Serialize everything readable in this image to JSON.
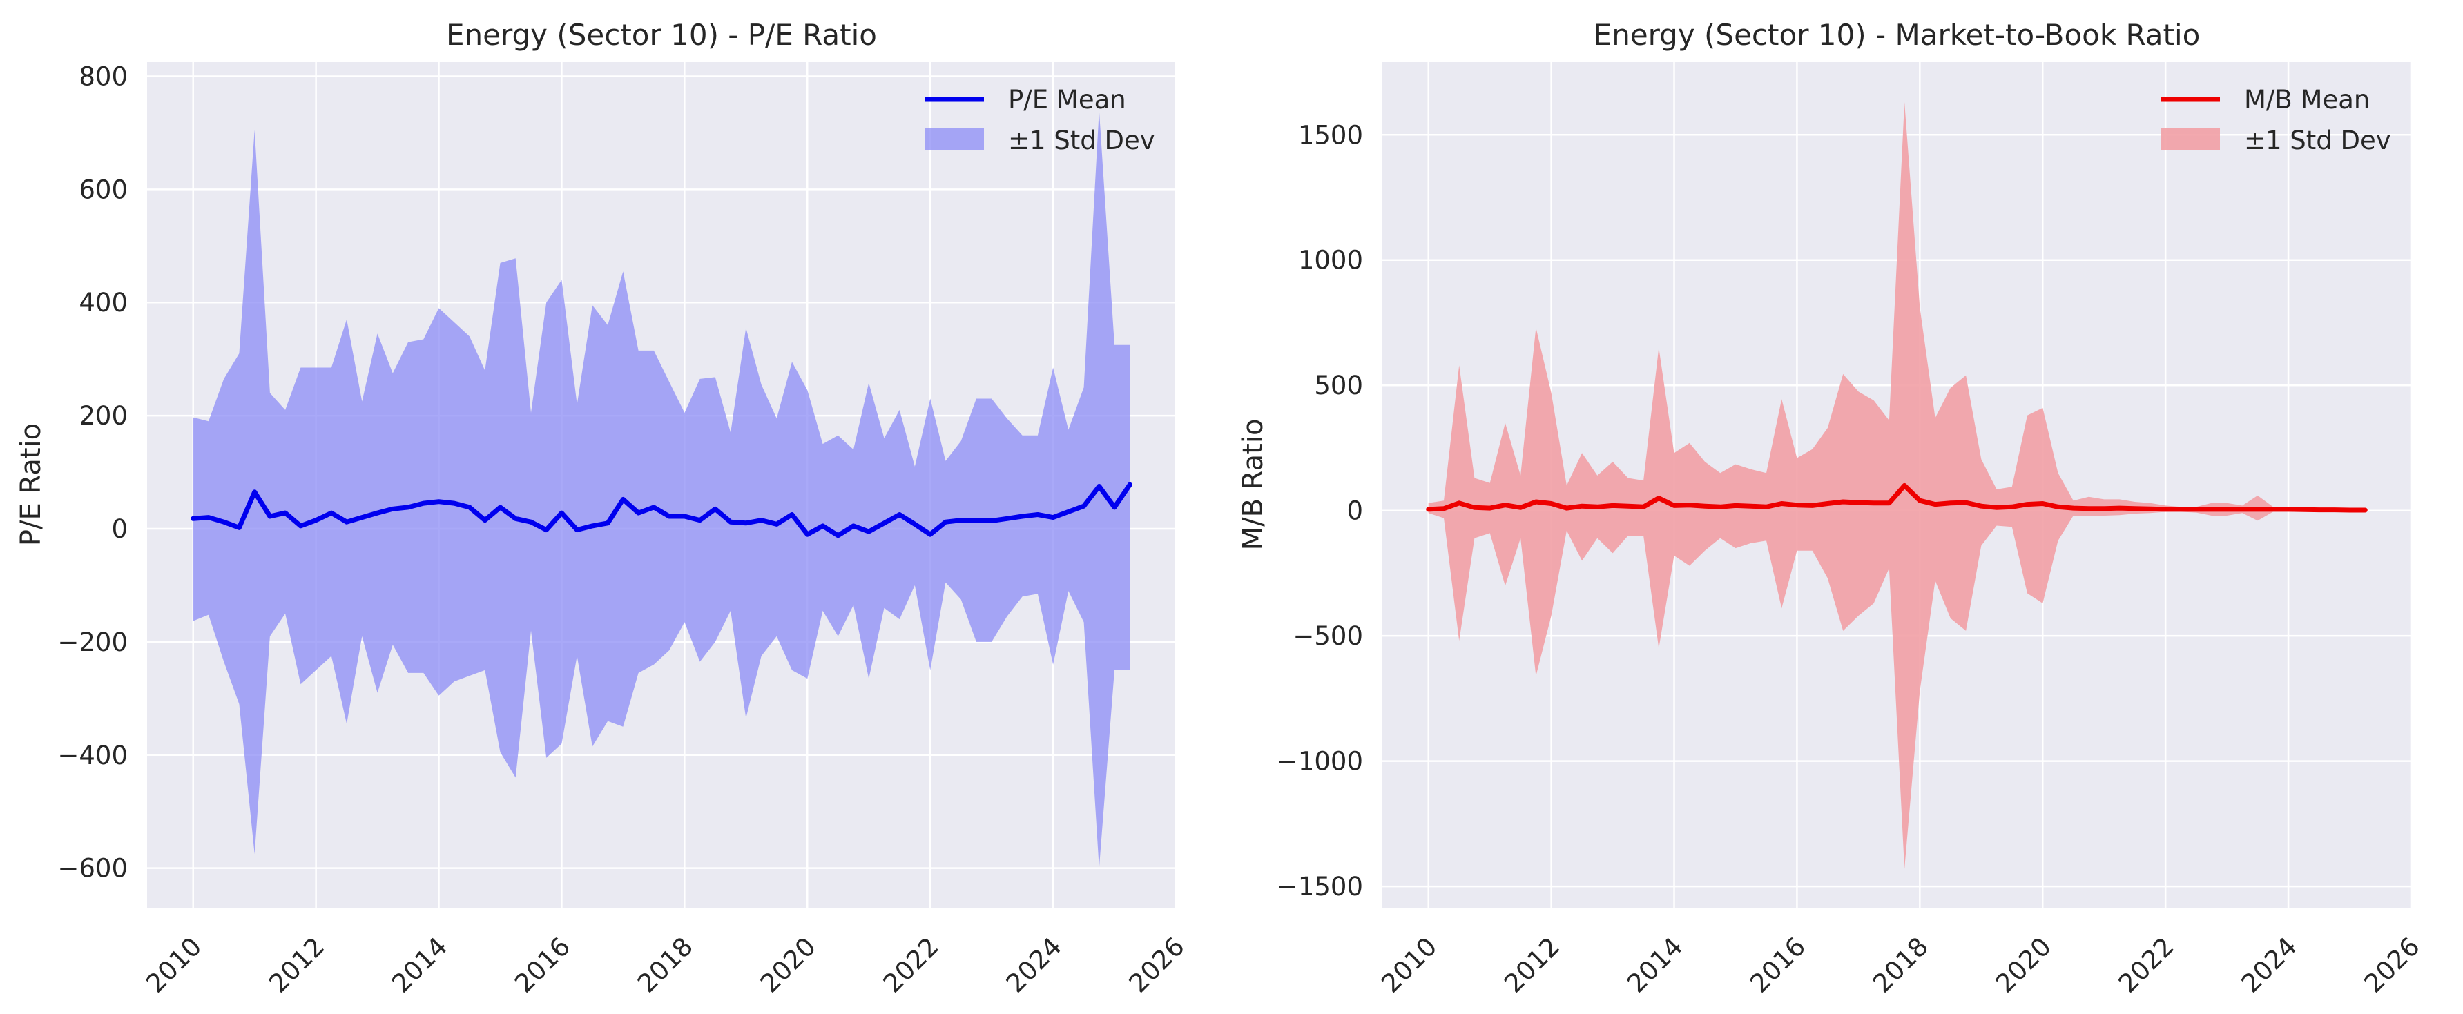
{
  "chart_data": [
    {
      "type": "line",
      "title": "Energy (Sector 10) - P/E Ratio",
      "xlabel": "",
      "ylabel": "P/E Ratio",
      "xlim": [
        2009.25,
        2026.0
      ],
      "ylim": [
        -670,
        825
      ],
      "x_ticks": [
        2010,
        2012,
        2014,
        2016,
        2018,
        2020,
        2022,
        2024,
        2026
      ],
      "x_tick_labels": [
        "2010",
        "2012",
        "2014",
        "2016",
        "2018",
        "2020",
        "2022",
        "2024",
        "2026"
      ],
      "y_ticks": [
        -600,
        -400,
        -200,
        0,
        200,
        400,
        600,
        800
      ],
      "y_tick_labels": [
        "−600",
        "−400",
        "−200",
        "0",
        "200",
        "400",
        "600",
        "800"
      ],
      "grid": true,
      "legend_position": "top-right",
      "legend": [
        "P/E Mean",
        "±1 Std Dev"
      ],
      "colors": {
        "line": "#0000ee",
        "band": "#8c8cf5"
      },
      "x": [
        2010.0,
        2010.25,
        2010.5,
        2010.75,
        2011.0,
        2011.25,
        2011.5,
        2011.75,
        2012.0,
        2012.25,
        2012.5,
        2012.75,
        2013.0,
        2013.25,
        2013.5,
        2013.75,
        2014.0,
        2014.25,
        2014.5,
        2014.75,
        2015.0,
        2015.25,
        2015.5,
        2015.75,
        2016.0,
        2016.25,
        2016.5,
        2016.75,
        2017.0,
        2017.25,
        2017.5,
        2017.75,
        2018.0,
        2018.25,
        2018.5,
        2018.75,
        2019.0,
        2019.25,
        2019.5,
        2019.75,
        2020.0,
        2020.25,
        2020.5,
        2020.75,
        2021.0,
        2021.25,
        2021.5,
        2021.75,
        2022.0,
        2022.25,
        2022.5,
        2022.75,
        2023.0,
        2023.25,
        2023.5,
        2023.75,
        2024.0,
        2024.25,
        2024.5,
        2024.75,
        2025.0,
        2025.25
      ],
      "series": [
        {
          "name": "P/E Mean",
          "values": [
            18,
            20,
            12,
            2,
            65,
            22,
            28,
            5,
            15,
            28,
            12,
            20,
            28,
            35,
            38,
            45,
            48,
            45,
            38,
            15,
            38,
            18,
            12,
            -2,
            28,
            -2,
            5,
            10,
            52,
            28,
            38,
            22,
            22,
            15,
            35,
            12,
            10,
            15,
            8,
            25,
            -10,
            5,
            -12,
            5,
            -5,
            10,
            25,
            8,
            -10,
            12,
            15,
            15,
            14,
            18,
            22,
            25,
            20,
            30,
            40,
            75,
            38,
            78
          ]
        },
        {
          "name": "±1 Std Dev",
          "lower": [
            -163,
            -152,
            -235,
            -310,
            -575,
            -190,
            -150,
            -275,
            -250,
            -225,
            -345,
            -190,
            -290,
            -205,
            -255,
            -255,
            -295,
            -270,
            -260,
            -250,
            -395,
            -440,
            -180,
            -405,
            -380,
            -225,
            -385,
            -340,
            -350,
            -255,
            -240,
            -215,
            -165,
            -235,
            -200,
            -145,
            -335,
            -225,
            -190,
            -250,
            -265,
            -145,
            -190,
            -135,
            -265,
            -140,
            -160,
            -100,
            -250,
            -95,
            -125,
            -200,
            -200,
            -155,
            -120,
            -115,
            -240,
            -110,
            -165,
            -600,
            -250,
            -250
          ],
          "upper": [
            197,
            190,
            265,
            310,
            705,
            240,
            210,
            285,
            285,
            285,
            370,
            225,
            345,
            275,
            330,
            335,
            390,
            365,
            340,
            280,
            470,
            478,
            205,
            400,
            440,
            220,
            395,
            360,
            455,
            315,
            315,
            260,
            205,
            265,
            268,
            170,
            355,
            255,
            195,
            295,
            245,
            150,
            165,
            140,
            258,
            160,
            210,
            110,
            230,
            120,
            155,
            230,
            230,
            195,
            165,
            165,
            285,
            175,
            250,
            740,
            325,
            325
          ]
        }
      ]
    },
    {
      "type": "line",
      "title": "Energy (Sector 10) - Market-to-Book Ratio",
      "xlabel": "",
      "ylabel": "M/B Ratio",
      "xlim": [
        2009.25,
        2026.0
      ],
      "ylim": [
        -1585,
        1790
      ],
      "x_ticks": [
        2010,
        2012,
        2014,
        2016,
        2018,
        2020,
        2022,
        2024,
        2026
      ],
      "x_tick_labels": [
        "2010",
        "2012",
        "2014",
        "2016",
        "2018",
        "2020",
        "2022",
        "2024",
        "2026"
      ],
      "y_ticks": [
        -1500,
        -1000,
        -500,
        0,
        500,
        1000,
        1500
      ],
      "y_tick_labels": [
        "−1500",
        "−1000",
        "−500",
        "0",
        "500",
        "1000",
        "1500"
      ],
      "grid": true,
      "legend_position": "top-right",
      "legend": [
        "M/B Mean",
        "±1 Std Dev"
      ],
      "colors": {
        "line": "#ee0000",
        "band": "#f2a0a5"
      },
      "x": [
        2010.0,
        2010.25,
        2010.5,
        2010.75,
        2011.0,
        2011.25,
        2011.5,
        2011.75,
        2012.0,
        2012.25,
        2012.5,
        2012.75,
        2013.0,
        2013.25,
        2013.5,
        2013.75,
        2014.0,
        2014.25,
        2014.5,
        2014.75,
        2015.0,
        2015.25,
        2015.5,
        2015.75,
        2016.0,
        2016.25,
        2016.5,
        2016.75,
        2017.0,
        2017.25,
        2017.5,
        2017.75,
        2018.0,
        2018.25,
        2018.5,
        2018.75,
        2019.0,
        2019.25,
        2019.5,
        2019.75,
        2020.0,
        2020.25,
        2020.5,
        2020.75,
        2021.0,
        2021.25,
        2021.5,
        2021.75,
        2022.0,
        2022.25,
        2022.5,
        2022.75,
        2023.0,
        2023.25,
        2023.5,
        2023.75,
        2024.0,
        2024.25,
        2024.5,
        2024.75,
        2025.0,
        2025.25
      ],
      "series": [
        {
          "name": "M/B Mean",
          "values": [
            5,
            8,
            30,
            12,
            10,
            22,
            12,
            35,
            28,
            10,
            18,
            15,
            20,
            18,
            15,
            50,
            20,
            22,
            18,
            15,
            20,
            18,
            15,
            28,
            22,
            20,
            28,
            35,
            32,
            30,
            30,
            100,
            40,
            25,
            30,
            32,
            18,
            12,
            15,
            25,
            28,
            15,
            10,
            8,
            8,
            10,
            8,
            7,
            5,
            5,
            5,
            5,
            5,
            5,
            5,
            5,
            5,
            4,
            3,
            3,
            2,
            2
          ]
        },
        {
          "name": "±1 Std Dev",
          "lower": [
            -10,
            -30,
            -520,
            -110,
            -90,
            -300,
            -110,
            -660,
            -420,
            -80,
            -200,
            -110,
            -170,
            -100,
            -100,
            -550,
            -180,
            -220,
            -160,
            -110,
            -150,
            -130,
            -120,
            -390,
            -160,
            -160,
            -270,
            -480,
            -420,
            -370,
            -230,
            -1430,
            -720,
            -280,
            -430,
            -480,
            -140,
            -60,
            -65,
            -330,
            -370,
            -120,
            -20,
            -20,
            -20,
            -18,
            -12,
            -10,
            -5,
            -5,
            -8,
            -20,
            -20,
            -10,
            -40,
            -5,
            -5,
            -5,
            -5,
            -3,
            -3,
            -3
          ],
          "upper": [
            30,
            40,
            580,
            130,
            110,
            350,
            140,
            730,
            470,
            100,
            230,
            140,
            195,
            130,
            120,
            650,
            230,
            270,
            195,
            150,
            185,
            165,
            150,
            445,
            210,
            245,
            330,
            545,
            475,
            440,
            360,
            1630,
            810,
            370,
            490,
            540,
            205,
            85,
            95,
            380,
            410,
            150,
            40,
            55,
            45,
            45,
            35,
            30,
            20,
            15,
            15,
            30,
            30,
            20,
            60,
            15,
            10,
            10,
            10,
            8,
            6,
            5
          ]
        }
      ]
    }
  ]
}
